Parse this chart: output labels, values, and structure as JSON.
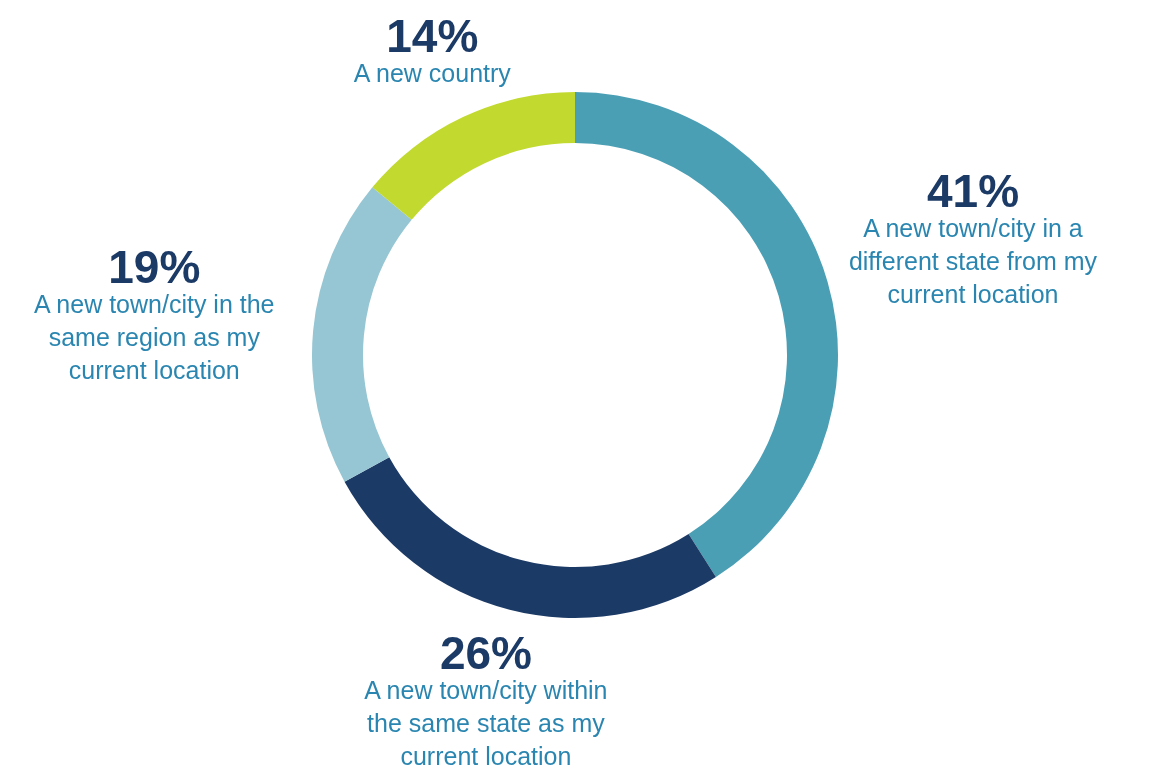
{
  "chart_data": {
    "type": "donut",
    "categories": [
      "A new town/city in a different state from my current location",
      "A new town/city within the same state as my current location",
      "A new town/city in the same region as my current location",
      "A new country"
    ],
    "values": [
      41,
      26,
      19,
      14
    ],
    "colors": [
      "#4a9fb5",
      "#1c3a66",
      "#96c6d3",
      "#c2d92f"
    ],
    "value_labels": [
      "41%",
      "26%",
      "19%",
      "14%"
    ]
  }
}
